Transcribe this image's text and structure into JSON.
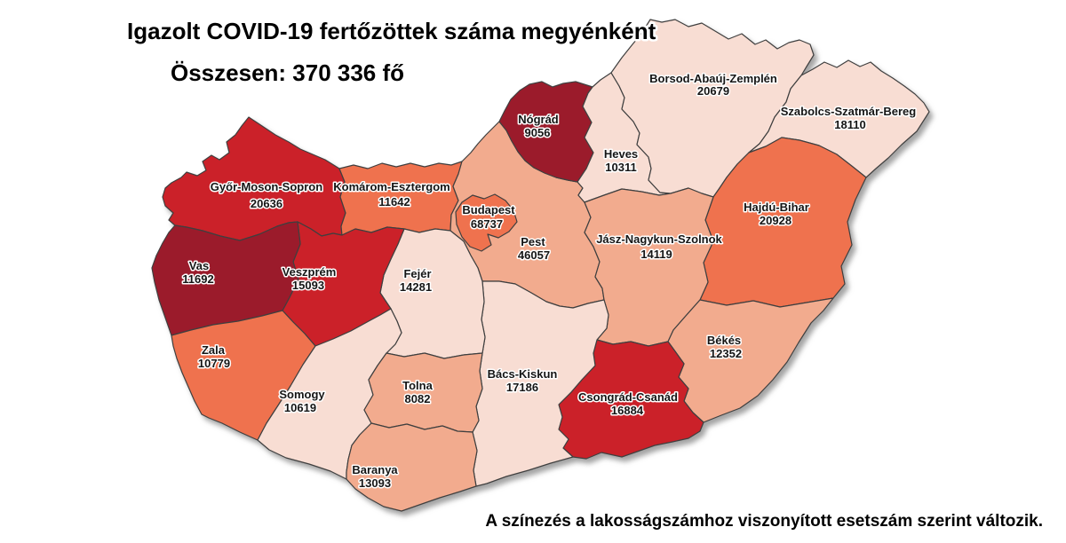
{
  "title": "Igazolt COVID-19 fertőzöttek száma megyénként",
  "total_label": "Összesen: 370 336 fő",
  "footnote": "A színezés a lakosságszámhoz viszonyított esetszám szerint változik.",
  "colors": {
    "background": "#FFFFFF",
    "border": "#3F3F3F",
    "label_text": "#151515",
    "label_halo": "#FFFFFF",
    "scale": {
      "level1": "#F8DDD3",
      "level2": "#F2AB8E",
      "level3": "#EF724E",
      "level4": "#CB2129",
      "level5": "#9B1B2B"
    }
  },
  "chart_data": {
    "type": "choropleth_map",
    "region": "Hungary counties (megyék)",
    "metric": "confirmed COVID-19 cases",
    "unit": "fő",
    "total": 370336,
    "note": "color level5 = darkest red (highest cases per population), level1 = lightest pink",
    "counties": [
      {
        "id": "gyor",
        "name": "Győr-Moson-Sopron",
        "cases": 20636,
        "level": "level4"
      },
      {
        "id": "komarom",
        "name": "Komárom-Esztergom",
        "cases": 11642,
        "level": "level3"
      },
      {
        "id": "vas",
        "name": "Vas",
        "cases": 11692,
        "level": "level5"
      },
      {
        "id": "veszprem",
        "name": "Veszprém",
        "cases": 15093,
        "level": "level4"
      },
      {
        "id": "zala",
        "name": "Zala",
        "cases": 10779,
        "level": "level3"
      },
      {
        "id": "somogy",
        "name": "Somogy",
        "cases": 10619,
        "level": "level1"
      },
      {
        "id": "baranya",
        "name": "Baranya",
        "cases": 13093,
        "level": "level2"
      },
      {
        "id": "tolna",
        "name": "Tolna",
        "cases": 8082,
        "level": "level2"
      },
      {
        "id": "fejer",
        "name": "Fejér",
        "cases": 14281,
        "level": "level1"
      },
      {
        "id": "bacs",
        "name": "Bács-Kiskun",
        "cases": 17186,
        "level": "level1"
      },
      {
        "id": "pest",
        "name": "Pest",
        "cases": 46057,
        "level": "level2"
      },
      {
        "id": "budapest",
        "name": "Budapest",
        "cases": 68737,
        "level": "level3"
      },
      {
        "id": "nograd",
        "name": "Nógrád",
        "cases": 9056,
        "level": "level5"
      },
      {
        "id": "heves",
        "name": "Heves",
        "cases": 10311,
        "level": "level1"
      },
      {
        "id": "borsod",
        "name": "Borsod-Abaúj-Zemplén",
        "cases": 20679,
        "level": "level1"
      },
      {
        "id": "szabolcs",
        "name": "Szabolcs-Szatmár-Bereg",
        "cases": 18110,
        "level": "level1"
      },
      {
        "id": "hajdu",
        "name": "Hajdú-Bihar",
        "cases": 20928,
        "level": "level3"
      },
      {
        "id": "jasz",
        "name": "Jász-Nagykun-Szolnok",
        "cases": 14119,
        "level": "level2"
      },
      {
        "id": "bekes",
        "name": "Békés",
        "cases": 12352,
        "level": "level2"
      },
      {
        "id": "csongrad",
        "name": "Csongrád-Csanád",
        "cases": 16884,
        "level": "level4"
      }
    ]
  }
}
